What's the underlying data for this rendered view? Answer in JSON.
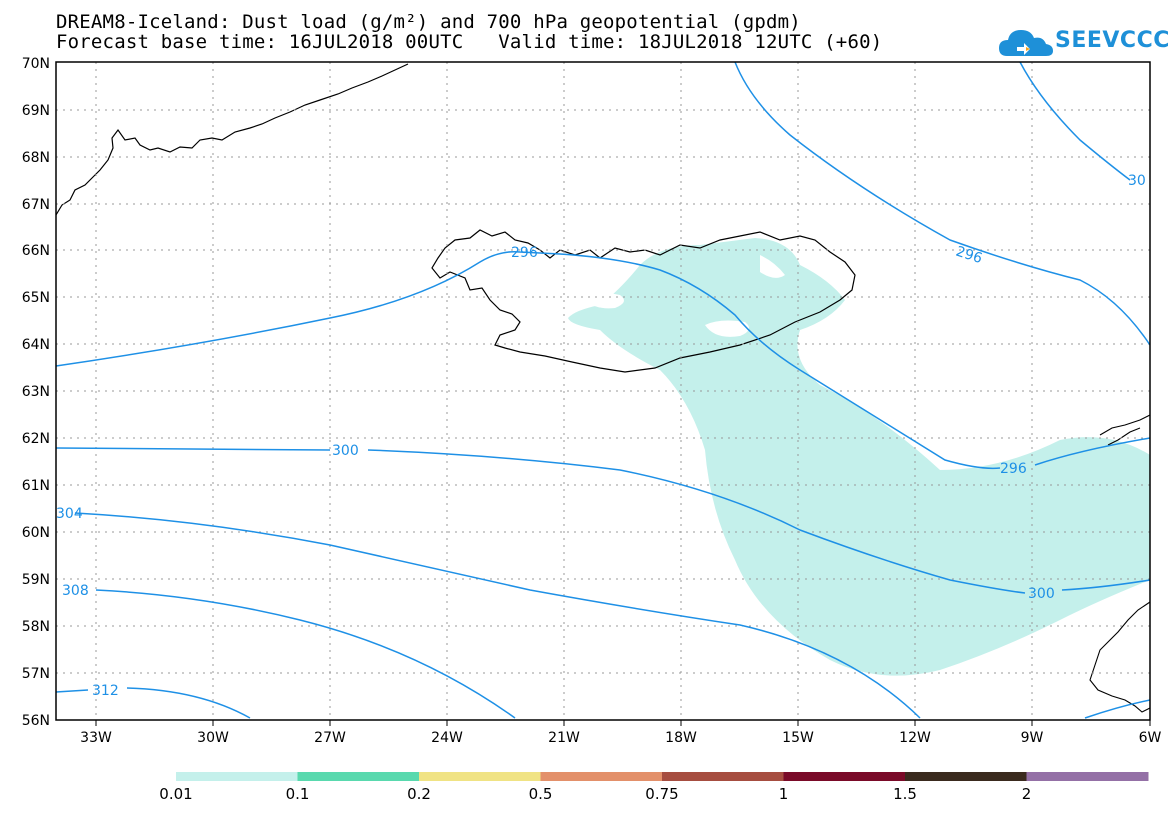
{
  "title": {
    "line1": "DREAM8-Iceland: Dust load (g/m²) and 700 hPa geopotential (gpdm)",
    "line2": "Forecast base time: 16JUL2018 00UTC   Valid time: 18JUL2018 12UTC (+60)"
  },
  "logo": {
    "text": "SEEVCCC"
  },
  "axes": {
    "lat_labels": [
      "70N",
      "69N",
      "68N",
      "67N",
      "66N",
      "65N",
      "64N",
      "63N",
      "62N",
      "61N",
      "60N",
      "59N",
      "58N",
      "57N",
      "56N"
    ],
    "lon_labels": [
      "33W",
      "30W",
      "27W",
      "24W",
      "21W",
      "18W",
      "15W",
      "12W",
      "9W",
      "6W"
    ]
  },
  "contours": {
    "labels": [
      "296",
      "296",
      "296",
      "300",
      "300",
      "304",
      "308",
      "312",
      "30"
    ]
  },
  "colorbar": {
    "colors": [
      "#c4f0eb",
      "#59d9ae",
      "#f0e384",
      "#e3906a",
      "#a64d40",
      "#7a0a28",
      "#3a2a1e",
      "#9470a6"
    ],
    "labels": [
      "0.01",
      "0.1",
      "0.2",
      "0.5",
      "0.75",
      "1",
      "1.5",
      "2"
    ]
  }
}
